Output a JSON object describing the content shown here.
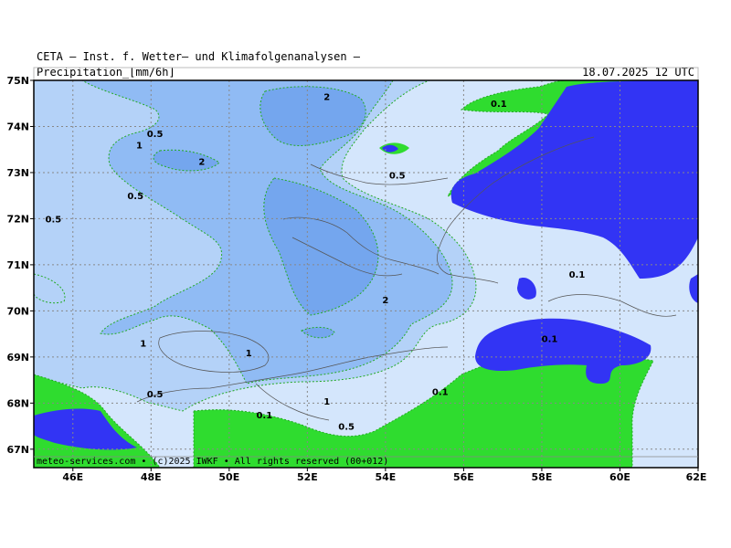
{
  "header": {
    "institution": "CETA — Inst. f. Wetter— und Klimafolgenanalysen —",
    "variable": "Precipitation_[mm/6h]",
    "valid_time": "18.07.2025 12 UTC"
  },
  "footer": {
    "credit": "meteo-services.com • (c)2025 IWKF • All rights reserved (00+012)"
  },
  "axes": {
    "y_ticks": [
      "75N",
      "74N",
      "73N",
      "72N",
      "71N",
      "70N",
      "69N",
      "68N",
      "67N"
    ],
    "x_ticks": [
      "46E",
      "48E",
      "50E",
      "52E",
      "54E",
      "56E",
      "58E",
      "60E",
      "62E"
    ]
  },
  "colors": {
    "lt_0_1": "#2fdc2f",
    "0_1_to_0_5": "#d4e6fc",
    "0_5_to_1": "#b4d2f8",
    "1_to_2": "#90bbf4",
    "gt_2": "#74a6ee",
    "dry_region": "#3234f4",
    "contour_line": "#22aa22",
    "grid": "#888888"
  },
  "contour_labels": [
    {
      "text": "0.5",
      "lon": 48.1,
      "lat": 73.85
    },
    {
      "text": "1",
      "lon": 47.7,
      "lat": 73.6
    },
    {
      "text": "2",
      "lon": 52.5,
      "lat": 74.65
    },
    {
      "text": "2",
      "lon": 49.3,
      "lat": 73.25
    },
    {
      "text": "0.5",
      "lon": 47.6,
      "lat": 72.5
    },
    {
      "text": "0.5",
      "lon": 45.5,
      "lat": 72.0
    },
    {
      "text": "0.1",
      "lon": 56.9,
      "lat": 74.5
    },
    {
      "text": "0.5",
      "lon": 54.3,
      "lat": 72.95
    },
    {
      "text": "0.1",
      "lon": 58.9,
      "lat": 70.8
    },
    {
      "text": "2",
      "lon": 54.0,
      "lat": 70.25
    },
    {
      "text": "0.1",
      "lon": 58.2,
      "lat": 69.4
    },
    {
      "text": "1",
      "lon": 47.8,
      "lat": 69.3
    },
    {
      "text": "1",
      "lon": 50.5,
      "lat": 69.1
    },
    {
      "text": "0.5",
      "lon": 48.1,
      "lat": 68.2
    },
    {
      "text": "1",
      "lon": 52.5,
      "lat": 68.05
    },
    {
      "text": "0.1",
      "lon": 55.4,
      "lat": 68.25
    },
    {
      "text": "0.1",
      "lon": 50.9,
      "lat": 67.75
    },
    {
      "text": "0.5",
      "lon": 53.0,
      "lat": 67.5
    }
  ]
}
